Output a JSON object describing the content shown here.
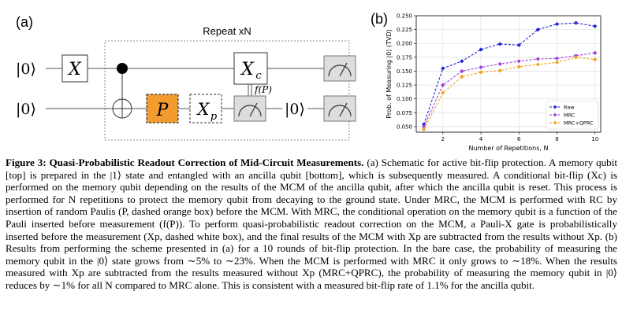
{
  "panel_a": {
    "label": "(a)",
    "repeat_label": "Repeat xN",
    "ket0": "|0⟩",
    "gate_x": "X",
    "gate_xc": "X",
    "gate_xc_sub": "c",
    "gate_p": "P",
    "gate_xp": "X",
    "gate_xp_sub": "p",
    "fP": "f(P)"
  },
  "panel_b": {
    "label": "(b)"
  },
  "colors": {
    "raw": "#1f1fd6",
    "mrc": "#9a3fe0",
    "mrc_qprc": "#f5a316",
    "p_box": "#f39b2f"
  },
  "chart_data": {
    "type": "line",
    "xlabel": "Number of Repetitions, N",
    "ylabel": "Prob. of Measuring |0⟩ (TVD)",
    "xlim": [
      0.6,
      10.3
    ],
    "ylim": [
      0.04,
      0.25
    ],
    "xticks": [
      "2",
      "4",
      "6",
      "8",
      "10"
    ],
    "yticks": [
      "0.050",
      "0.075",
      "0.100",
      "0.125",
      "0.150",
      "0.175",
      "0.200",
      "0.225",
      "0.250"
    ],
    "legend_position": "bottom-right",
    "x": [
      1,
      2,
      3,
      4,
      5,
      6,
      7,
      8,
      9,
      10
    ],
    "series": [
      {
        "name": "Raw",
        "values": [
          0.054,
          0.155,
          0.168,
          0.189,
          0.199,
          0.197,
          0.225,
          0.235,
          0.237,
          0.231
        ]
      },
      {
        "name": "MRC",
        "values": [
          0.05,
          0.125,
          0.15,
          0.157,
          0.163,
          0.168,
          0.172,
          0.173,
          0.178,
          0.183
        ]
      },
      {
        "name": "MRC+QPRC",
        "values": [
          0.045,
          0.111,
          0.14,
          0.148,
          0.151,
          0.158,
          0.162,
          0.166,
          0.175,
          0.171
        ]
      }
    ]
  },
  "caption": {
    "title": "Figure 3: Quasi-Probabilistic Readout Correction of Mid-Circuit Measurements.",
    "body": " (a) Schematic for active bit-flip protection. A memory qubit [top] is prepared in the |1⟩ state and entangled with an ancilla qubit [bottom], which is subsequently measured. A conditional bit-flip (Xc) is performed on the memory qubit depending on the results of the MCM of the ancilla qubit, after which the ancilla qubit is reset. This process is performed for N repetitions to protect the memory qubit from decaying to the ground state. Under MRC, the MCM is performed with RC by insertion of random Paulis (P, dashed orange box) before the MCM. With MRC, the conditional operation on the memory qubit is a function of the Pauli inserted before measurement (f(P)). To perform quasi-probabilistic readout correction on the MCM, a Pauli-X gate is probabilistically inserted before the measurement (Xp, dashed white box), and the final results of the MCM with Xp are subtracted from the results without Xp. (b) Results from performing the scheme presented in (a) for a 10 rounds of bit-flip protection. In the bare case, the probability of measuring the memory qubit in the |0⟩ state grows from ∼5% to ∼23%. When the MCM is performed with MRC it only grows to ∼18%. When the results measured with Xp are subtracted from the results measured without Xp (MRC+QPRC), the probability of measuring the memory qubit in |0⟩ reduces by ∼1% for all N compared to MRC alone. This is consistent with a measured bit-flip rate of 1.1% for the ancilla qubit."
  }
}
